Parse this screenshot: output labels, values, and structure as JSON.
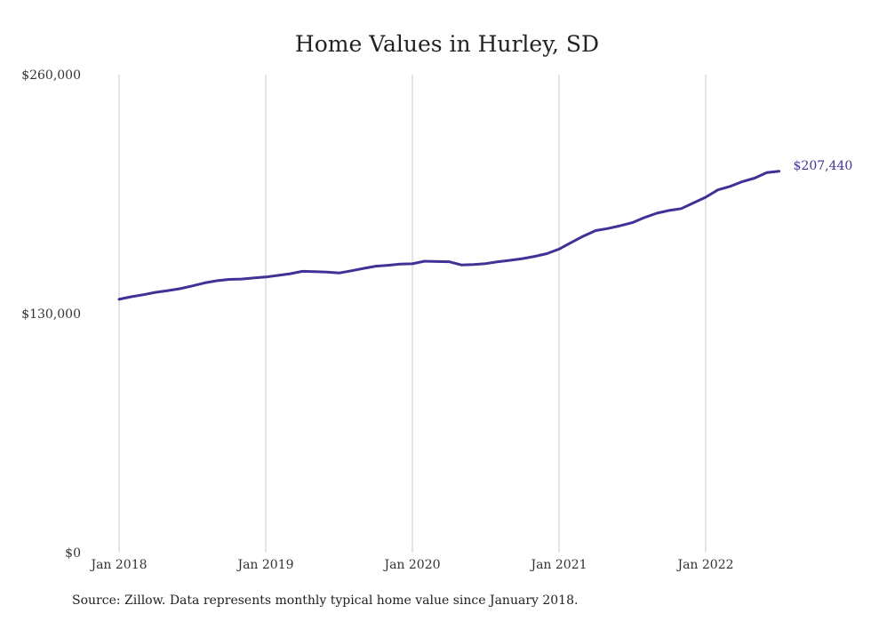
{
  "chart_data": {
    "type": "line",
    "title": "Home Values in Hurley, SD",
    "xlabel": "",
    "ylabel": "",
    "y_ticks": [
      {
        "value": 0,
        "label": "$0"
      },
      {
        "value": 130000,
        "label": "$130,000"
      },
      {
        "value": 260000,
        "label": "$260,000"
      }
    ],
    "ylim": [
      0,
      260000
    ],
    "x_ticks": [
      "Jan 2018",
      "Jan 2019",
      "Jan 2020",
      "Jan 2021",
      "Jan 2022"
    ],
    "xlim": [
      "2018-01",
      "2022-07"
    ],
    "grid": "vertical",
    "line_color": "#3f3296",
    "end_label": "$207,440",
    "series": [
      {
        "x": [
          "2018-01",
          "2018-02",
          "2018-03",
          "2018-04",
          "2018-05",
          "2018-06",
          "2018-07",
          "2018-08",
          "2018-09",
          "2018-10",
          "2018-11",
          "2018-12",
          "2019-01",
          "2019-02",
          "2019-03",
          "2019-04",
          "2019-05",
          "2019-06",
          "2019-07",
          "2019-08",
          "2019-09",
          "2019-10",
          "2019-11",
          "2019-12",
          "2020-01",
          "2020-02",
          "2020-03",
          "2020-04",
          "2020-05",
          "2020-06",
          "2020-07",
          "2020-08",
          "2020-09",
          "2020-10",
          "2020-11",
          "2020-12",
          "2021-01",
          "2021-02",
          "2021-03",
          "2021-04",
          "2021-05",
          "2021-06",
          "2021-07",
          "2021-08",
          "2021-09",
          "2021-10",
          "2021-11",
          "2021-12",
          "2022-01",
          "2022-02",
          "2022-03",
          "2022-04",
          "2022-05",
          "2022-06",
          "2022-07"
        ],
        "values": [
          137800,
          139200,
          140300,
          141600,
          142500,
          143600,
          145100,
          146700,
          147900,
          148600,
          148800,
          149400,
          149900,
          150800,
          151700,
          153000,
          152800,
          152600,
          152100,
          153300,
          154600,
          155800,
          156300,
          156900,
          157100,
          158500,
          158300,
          158200,
          156500,
          156700,
          157200,
          158200,
          159000,
          159900,
          161100,
          162600,
          165100,
          168700,
          172200,
          175200,
          176300,
          177800,
          179500,
          182300,
          184600,
          186100,
          187100,
          190200,
          193300,
          197300,
          199200,
          201800,
          203700,
          206700,
          207440
        ]
      }
    ]
  },
  "source_note": "Source: Zillow. Data represents monthly typical home value since January 2018."
}
